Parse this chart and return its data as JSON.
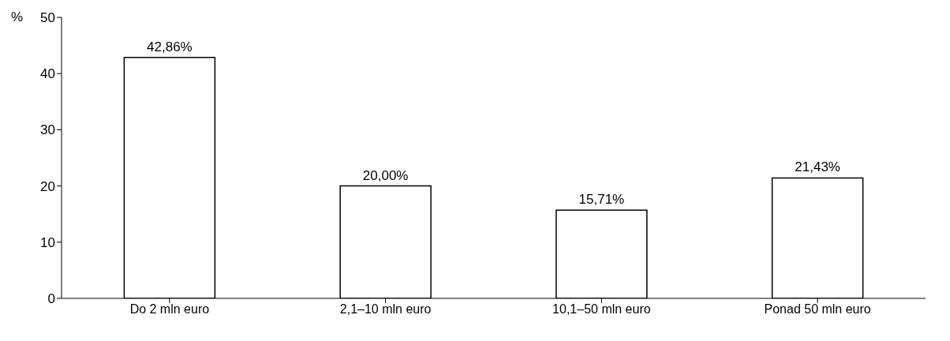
{
  "chart_data": {
    "type": "bar",
    "ylabel": "%",
    "categories": [
      "Do 2 mln euro",
      "2,1–10 mln euro",
      "10,1–50 mln euro",
      "Ponad 50 mln euro"
    ],
    "values": [
      42.86,
      20.0,
      15.71,
      21.43
    ],
    "value_labels": [
      "42,86%",
      "20,00%",
      "15,71%",
      "21,43%"
    ],
    "color": "#ffffff",
    "ylim": [
      0,
      50
    ],
    "yticks": [
      0,
      10,
      20,
      30,
      40,
      50
    ]
  }
}
